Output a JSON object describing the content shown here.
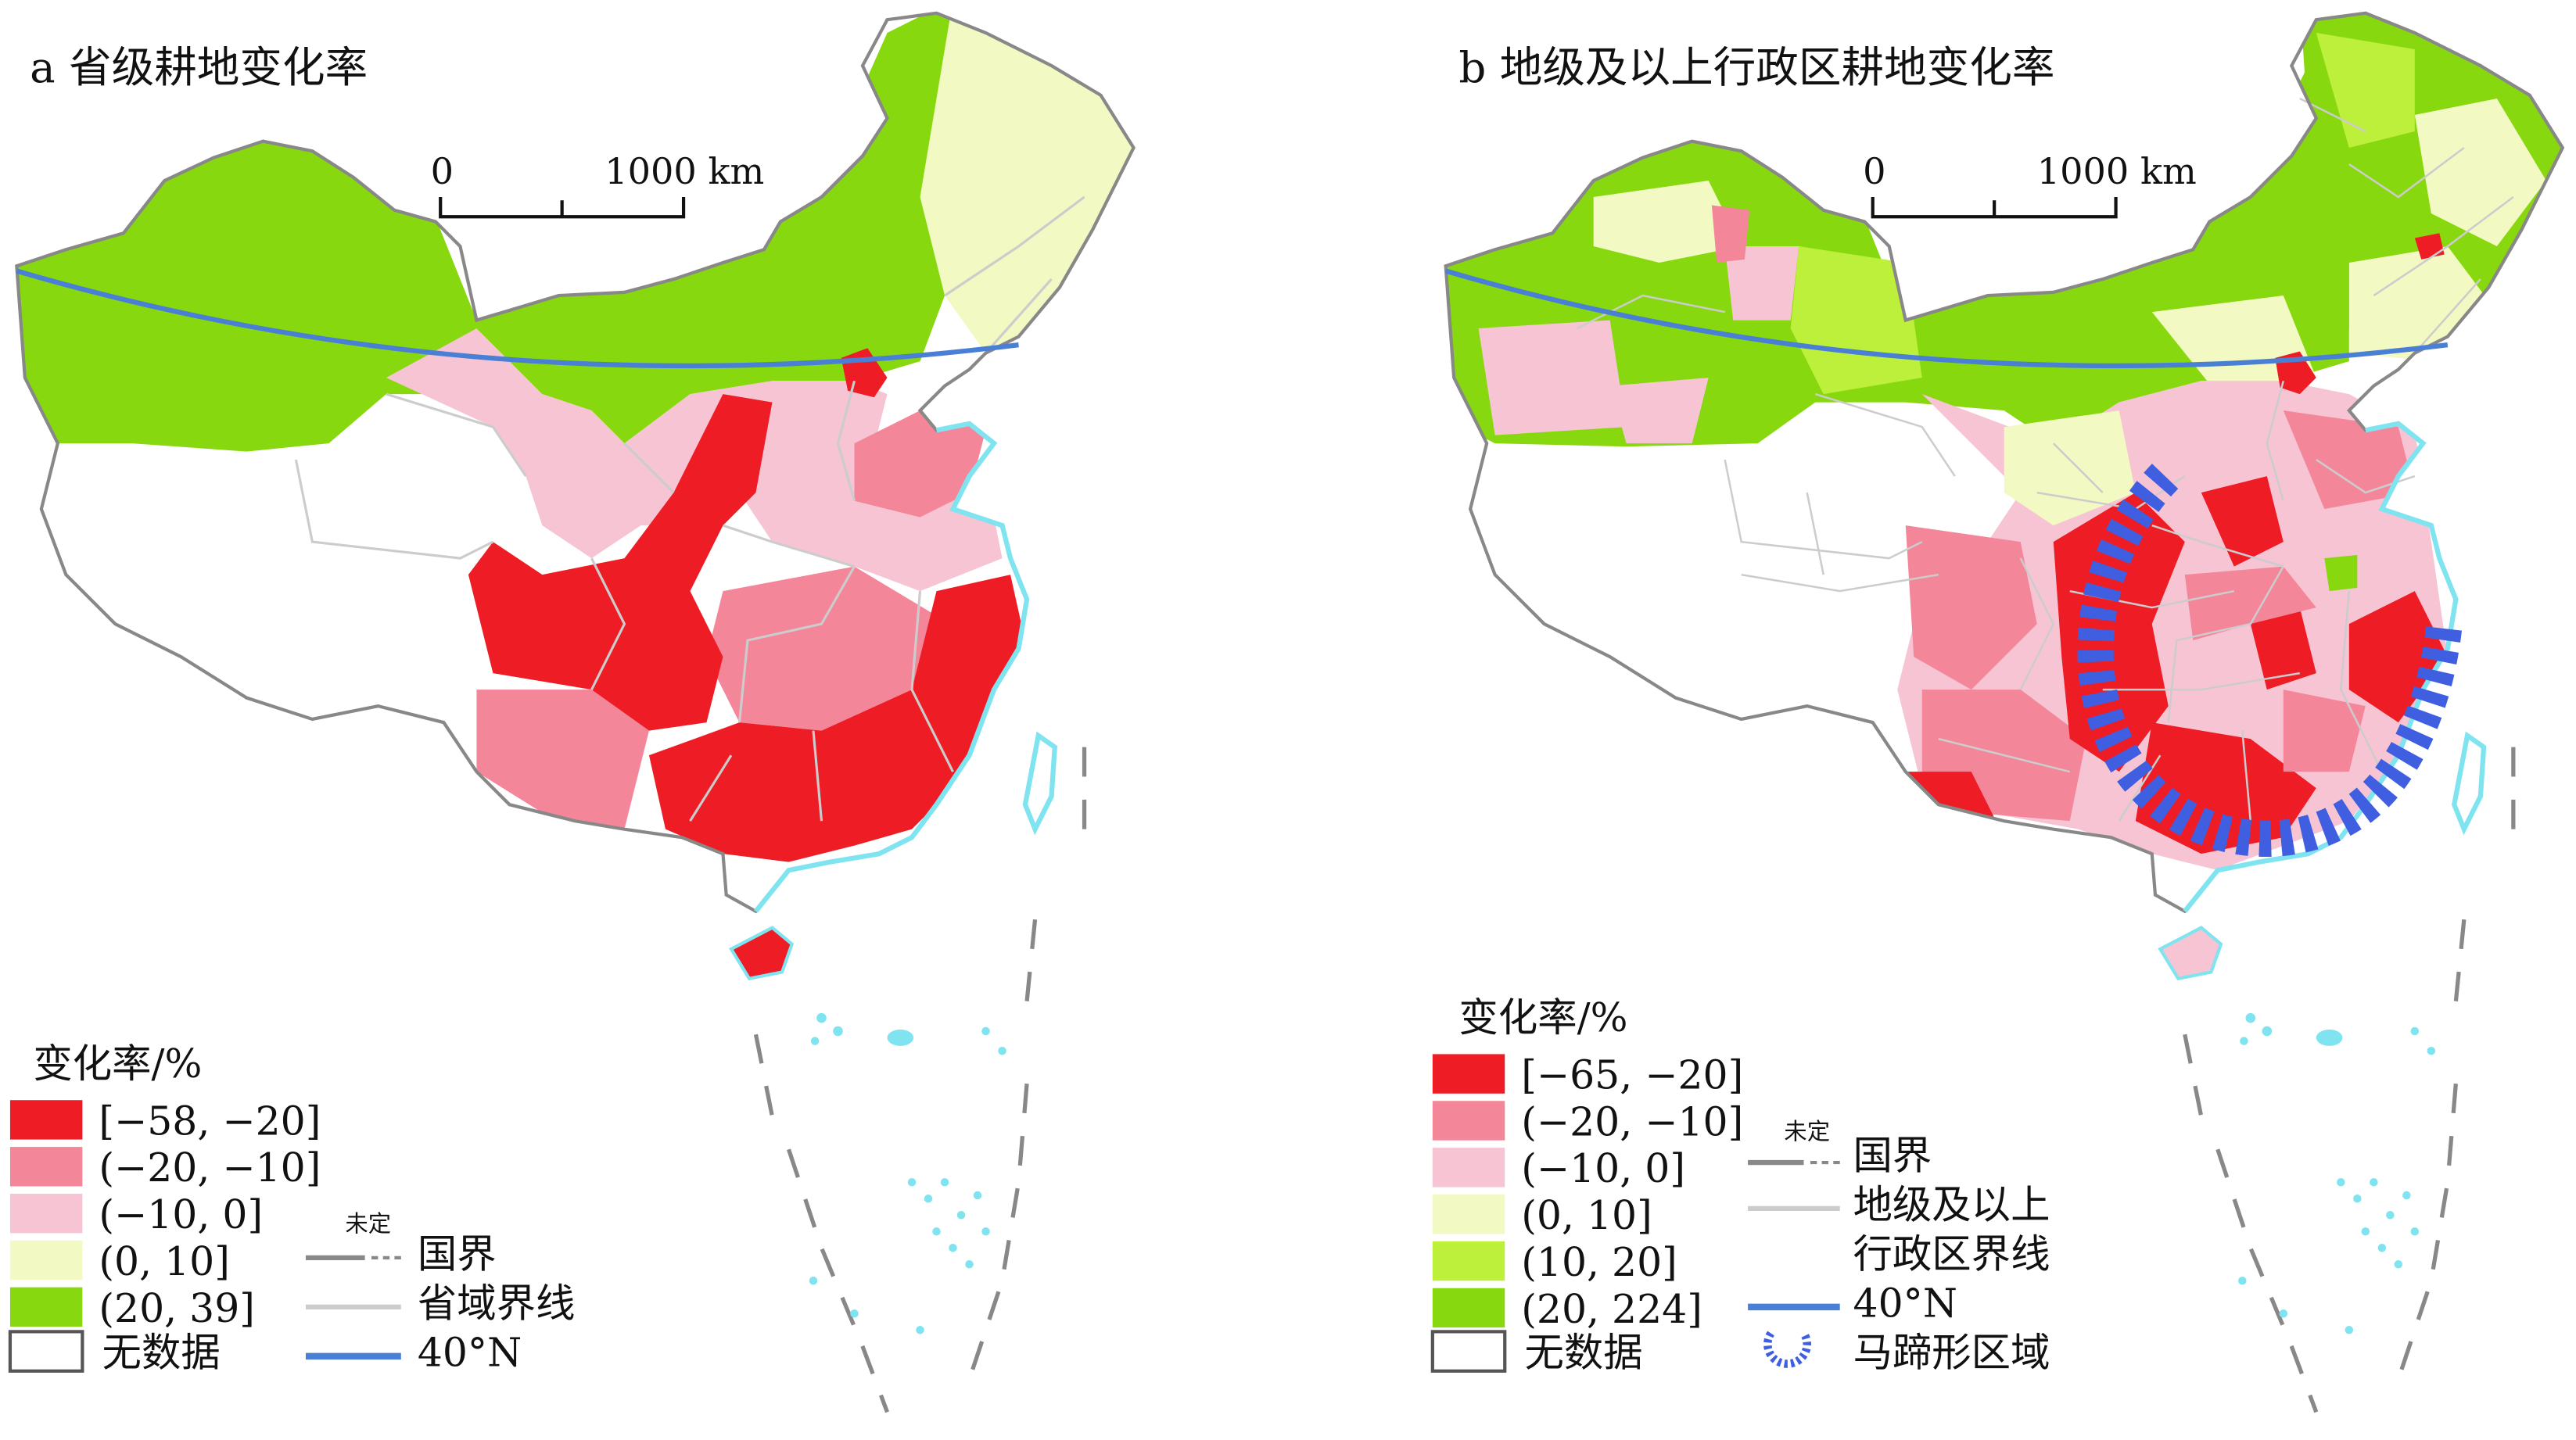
{
  "panel_a": {
    "title": "a  省级耕地变化率",
    "scale": {
      "zero": "0",
      "distance": "1000 km"
    },
    "legend": {
      "heading": "变化率/%",
      "classes": [
        {
          "label": "[−58, −20]",
          "color": "#ee1c25"
        },
        {
          "label": "(−20, −10]",
          "color": "#f4869a"
        },
        {
          "label": "(−10, 0]",
          "color": "#f7c4d4"
        },
        {
          "label": "(0, 10]",
          "color": "#f3f9c2"
        },
        {
          "label": "(20, 39]",
          "color": "#88d80f"
        }
      ],
      "no_data": "无数据",
      "lines": {
        "undetermined": "未定",
        "border": "国界",
        "province": "省域界线",
        "parallel": "40°N"
      }
    }
  },
  "panel_b": {
    "title": "b  地级及以上行政区耕地变化率",
    "scale": {
      "zero": "0",
      "distance": "1000 km"
    },
    "legend": {
      "heading": "变化率/%",
      "classes": [
        {
          "label": "[−65, −20]",
          "color": "#ee1c25"
        },
        {
          "label": "(−20, −10]",
          "color": "#f4869a"
        },
        {
          "label": "(−10, 0]",
          "color": "#f7c4d4"
        },
        {
          "label": "(0, 10]",
          "color": "#f3f9c2"
        },
        {
          "label": "(10, 20]",
          "color": "#bdf03a"
        },
        {
          "label": "(20, 224]",
          "color": "#88d80f"
        }
      ],
      "no_data": "无数据",
      "lines": {
        "undetermined": "未定",
        "border": "国界",
        "prefecture_l1": "地级及以上",
        "prefecture_l2": "行政区界线",
        "parallel": "40°N",
        "horseshoe": "马蹄形区域"
      }
    }
  },
  "colors": {
    "border": "#888888",
    "province_line": "#cccccc",
    "parallel": "#4a7fd6",
    "sea": "#7fe4f0",
    "horseshoe": "#3f5fe0"
  }
}
